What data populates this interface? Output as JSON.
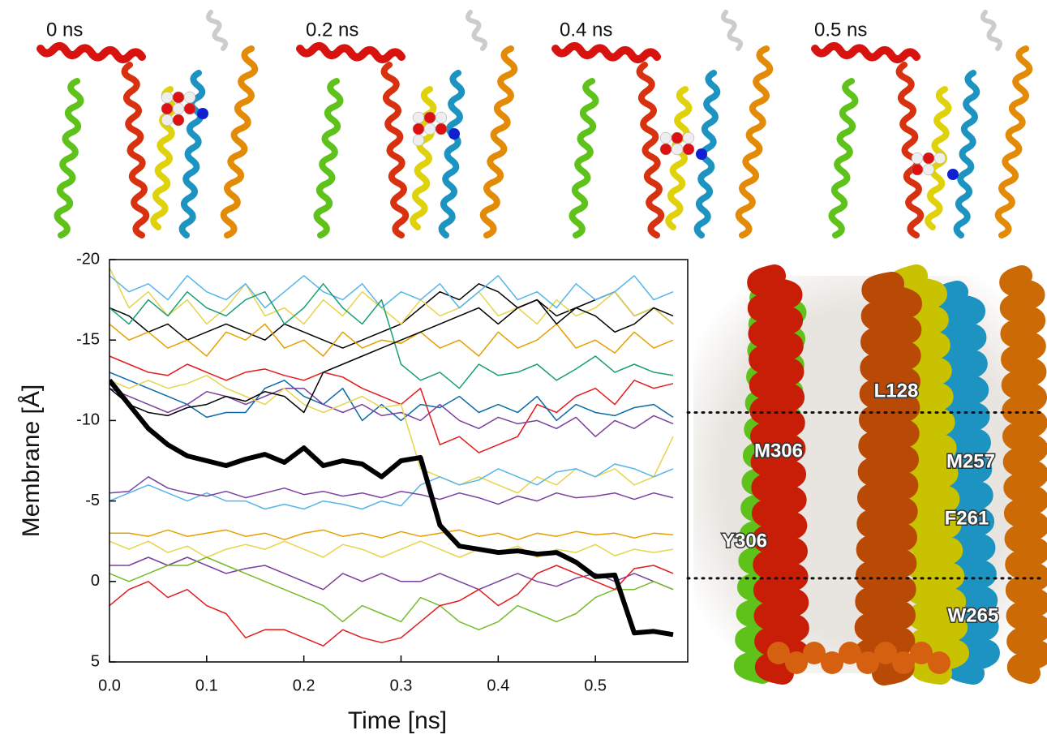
{
  "chart_data": {
    "type": "line",
    "y_label": "Membrane [Å]",
    "x_label": "Time [ns]",
    "xlim": [
      0,
      0.595
    ],
    "ylim": [
      -20,
      5
    ],
    "y_inverted": true,
    "xticks": [
      {
        "value": 0,
        "label": "0.0"
      },
      0.1,
      0.2,
      0.3,
      0.4,
      0.5
    ],
    "yticks": [
      -20,
      -15,
      -10,
      -5,
      0,
      5
    ],
    "reference_lines": [
      -10.5,
      -0.2
    ],
    "x": [
      0,
      0.02,
      0.04,
      0.06,
      0.08,
      0.1,
      0.12,
      0.14,
      0.16,
      0.18,
      0.2,
      0.22,
      0.24,
      0.26,
      0.28,
      0.3,
      0.32,
      0.34,
      0.36,
      0.38,
      0.4,
      0.42,
      0.44,
      0.46,
      0.48,
      0.5,
      0.52,
      0.54,
      0.56,
      0.58
    ],
    "series": [
      {
        "color": "#000000",
        "width": 1.5,
        "values": [
          -17,
          -16.5,
          -15.5,
          -16,
          -15,
          -15.5,
          -16,
          -15.5,
          -15,
          -16,
          -15.5,
          -15,
          -14.5,
          -15,
          -15.5,
          -16,
          -17,
          -18,
          -17.5,
          -18.5,
          -18,
          -17,
          -17.5,
          -16.5,
          -17,
          -17.5,
          -18,
          -16.5,
          -17,
          -16
        ]
      },
      {
        "color": "#e7d44a",
        "width": 1.5,
        "values": [
          -19.5,
          -17,
          -18,
          -16.5,
          -17.5,
          -16,
          -17,
          -18.5,
          -16.5,
          -17,
          -16,
          -17.5,
          -16.5,
          -18,
          -17,
          -16,
          -17.5,
          -16.5,
          -17,
          -18,
          -16.5,
          -17,
          -16,
          -17.5,
          -16.5,
          -17,
          -18,
          -16.5,
          -17,
          -16
        ]
      },
      {
        "color": "#56b4e9",
        "width": 1.5,
        "values": [
          -19,
          -18,
          -18.5,
          -17.5,
          -19,
          -18,
          -17.5,
          -18.5,
          -17,
          -18,
          -19,
          -18,
          -17.5,
          -18.5,
          -17,
          -18,
          -17.5,
          -18.5,
          -17,
          -18,
          -19,
          -17.5,
          -18,
          -17,
          -18.5,
          -17.5,
          -18,
          -19,
          -17.5,
          -18
        ]
      },
      {
        "color": "#e69f00",
        "width": 1.5,
        "values": [
          -16,
          -15,
          -15.5,
          -14.5,
          -15,
          -14,
          -15.5,
          -15,
          -16,
          -14.5,
          -15,
          -14,
          -15.5,
          -14.5,
          -15,
          -14.8,
          -15.5,
          -14.5,
          -15,
          -14,
          -15.5,
          -14.5,
          -15,
          -16,
          -14.5,
          -15,
          -14.2,
          -15.5,
          -14.5,
          -15
        ]
      },
      {
        "color": "#1a9e77",
        "width": 1.5,
        "values": [
          -17,
          -16,
          -17.5,
          -16.5,
          -18,
          -17,
          -16.5,
          -17.5,
          -18,
          -16,
          -17,
          -18.5,
          -17,
          -16,
          -17.5,
          -13.5,
          -12.5,
          -13,
          -12,
          -13.5,
          -12.8,
          -13,
          -13.5,
          -12.5,
          -13.2,
          -14,
          -13,
          -13.5,
          -13,
          -12.8
        ]
      },
      {
        "color": "#e41a1c",
        "width": 1.5,
        "values": [
          -14,
          -13.5,
          -13,
          -12.8,
          -13.5,
          -13,
          -12.5,
          -13,
          -13.2,
          -12.8,
          -12.5,
          -13,
          -12.7,
          -12,
          -11.5,
          -11,
          -12,
          -8.5,
          -9,
          -8,
          -8.5,
          -9,
          -11,
          -10.5,
          -11.5,
          -12,
          -11,
          -12.5,
          -12,
          -12.3
        ]
      },
      {
        "color": "#0b6aa8",
        "width": 1.5,
        "values": [
          -13,
          -12.5,
          -12,
          -11.5,
          -11,
          -10.2,
          -10.5,
          -10.5,
          -12,
          -12.5,
          -11.5,
          -11,
          -12,
          -10,
          -11,
          -10,
          -11,
          -10.8,
          -11.5,
          -10.5,
          -11,
          -10.5,
          -11.5,
          -10,
          -11,
          -10.5,
          -10.3,
          -10.8,
          -11,
          -10.2
        ]
      },
      {
        "color": "#7b3f9e",
        "width": 1.5,
        "values": [
          -12,
          -11.5,
          -11,
          -10.5,
          -11,
          -11.8,
          -11.5,
          -11,
          -11.5,
          -12,
          -12,
          -11,
          -10.5,
          -11,
          -10.3,
          -10.5,
          -10,
          -11,
          -10,
          -9.5,
          -10.2,
          -9.8,
          -10,
          -9.5,
          -10.2,
          -9,
          -10,
          -9.5,
          -10.3,
          -9.8
        ]
      },
      {
        "color": "#e7d44a",
        "width": 1.5,
        "values": [
          -12.5,
          -12,
          -12.5,
          -12,
          -12.3,
          -12.8,
          -12,
          -11.5,
          -11,
          -12,
          -11,
          -10.5,
          -11,
          -11.5,
          -10.8,
          -11,
          -7,
          -6.5,
          -6,
          -6.5,
          -6,
          -5.5,
          -6.5,
          -6,
          -7,
          -6.5,
          -7,
          -6,
          -6.5,
          -9
        ]
      },
      {
        "color": "#000000",
        "width": 1.5,
        "values": [
          -12,
          -11,
          -10.5,
          -10.3,
          -10.8,
          -11,
          -11.5,
          -11.2,
          -11.8,
          -11.5,
          -10.5,
          -13,
          -13.5,
          -14,
          -14.5,
          -15,
          -15.5,
          -16,
          -16.5,
          -17,
          -16,
          -17,
          -17.5,
          -16,
          -17,
          -16.5,
          -15.5,
          -16,
          -17,
          -16.5
        ]
      },
      {
        "color": "#56b4e9",
        "width": 1.5,
        "values": [
          -5,
          -5.5,
          -6,
          -5.5,
          -5,
          -5.5,
          -5,
          -5,
          -4.5,
          -4.8,
          -4.5,
          -5,
          -4.8,
          -4.5,
          -5,
          -4.7,
          -6,
          -6.5,
          -6,
          -6.3,
          -7,
          -6.5,
          -6,
          -6.8,
          -7,
          -6.5,
          -7.3,
          -7,
          -6.5,
          -7
        ]
      },
      {
        "color": "#7b3f9e",
        "width": 1.5,
        "values": [
          -5.5,
          -5.6,
          -6.5,
          -5.8,
          -5.5,
          -5.3,
          -5.6,
          -5.2,
          -5.5,
          -5.8,
          -5.4,
          -5.6,
          -5.3,
          -5.5,
          -5.2,
          -5.6,
          -5.4,
          -5.1,
          -5.5,
          -5.2,
          -4.8,
          -5.3,
          -5,
          -5.5,
          -5.2,
          -5.3,
          -5.5,
          -5.1,
          -5.5,
          -5.2
        ]
      },
      {
        "color": "#e69f00",
        "width": 1.5,
        "values": [
          -3,
          -3,
          -2.8,
          -3.2,
          -2.8,
          -3,
          -3.2,
          -2.8,
          -3,
          -2.6,
          -3,
          -3.2,
          -2.8,
          -3,
          -2.7,
          -3.1,
          -2.8,
          -3,
          -3.2,
          -2.8,
          -3,
          -2.6,
          -3,
          -2.8,
          -3.1,
          -2.9,
          -3,
          -2.7,
          -3,
          -2.9
        ]
      },
      {
        "color": "#e7d44a",
        "width": 1.5,
        "values": [
          -2.5,
          -2,
          -2.5,
          -1.8,
          -2.2,
          -1.5,
          -2,
          -2.3,
          -2,
          -2.5,
          -2,
          -1.5,
          -2.3,
          -2,
          -1.5,
          -2,
          -2.5,
          -2,
          -1.5,
          -2,
          -1.8,
          -2.2,
          -1.5,
          -2,
          -1.8,
          -2.3,
          -1.6,
          -2,
          -1.8,
          -2
        ]
      },
      {
        "color": "#7b3f9e",
        "width": 1.5,
        "values": [
          -1,
          -1,
          -1.5,
          -1,
          -1.5,
          -1,
          -0.5,
          -0.8,
          -1,
          -0.5,
          0,
          0.5,
          -0.5,
          0,
          -0.5,
          0,
          0,
          -0.5,
          0,
          0.5,
          0,
          -0.5,
          0,
          0.3,
          -0.2,
          -0.5,
          0,
          -0.5,
          0,
          0.5
        ]
      },
      {
        "color": "#77bb2b",
        "width": 1.5,
        "values": [
          -0.5,
          0,
          -0.5,
          -1,
          -1,
          -1.5,
          -1,
          -0.5,
          0,
          0.5,
          1,
          1.5,
          2.5,
          1.5,
          2,
          2.5,
          1,
          1.5,
          2.5,
          3,
          2.5,
          1.5,
          2,
          2.5,
          2,
          1,
          0.5,
          0.5,
          0,
          0.5
        ]
      },
      {
        "color": "#e41a1c",
        "width": 1.5,
        "values": [
          1.5,
          0.5,
          0,
          1,
          0.5,
          1.5,
          2,
          3.5,
          3,
          3,
          3.5,
          4,
          3,
          3.5,
          3.8,
          3.5,
          2.5,
          1.5,
          1.2,
          0.5,
          1.5,
          0.8,
          -0.5,
          -1,
          -0.5,
          0,
          0.5,
          -0.8,
          -1,
          -0.5
        ]
      },
      {
        "color": "#000000",
        "width": 6,
        "values": [
          -12.5,
          -11,
          -9.5,
          -8.5,
          -7.8,
          -7.5,
          -7.2,
          -7.6,
          -7.9,
          -7.4,
          -8.3,
          -7.2,
          -7.5,
          -7.3,
          -6.5,
          -7.5,
          -7.7,
          -3.5,
          -2.2,
          -2,
          -1.8,
          -1.9,
          -1.7,
          -1.8,
          -1.2,
          -0.3,
          -0.4,
          3.2,
          3.1,
          3.3
        ]
      }
    ]
  },
  "snapshots": [
    "0 ns",
    "0.2 ns",
    "0.4 ns",
    "0.5 ns"
  ],
  "residue_labels": [
    "L128",
    "M306",
    "M257",
    "F261",
    "Y306",
    "W265"
  ]
}
